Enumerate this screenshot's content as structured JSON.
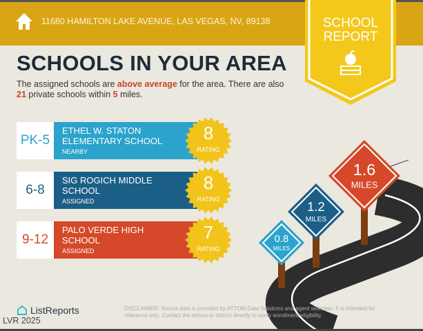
{
  "header": {
    "address": "11680 HAMILTON LAKE AVENUE, LAS VEGAS, NV, 89138",
    "badge_line1": "SCHOOL",
    "badge_line2": "REPORT",
    "icons": [
      "home-icon",
      "apple-books-icon"
    ]
  },
  "title": "SCHOOLS IN YOUR AREA",
  "intro": {
    "p1": "The assigned schools are ",
    "above": "above average",
    "p2": " for the area. There are also ",
    "count": "21",
    "p3": " private schools within ",
    "miles": "5",
    "p4": " miles."
  },
  "schools": [
    {
      "grades": "PK-5",
      "name": "ETHEL W. STATON ELEMENTARY SCHOOL",
      "status": "NEARBY",
      "rating": "8",
      "rating_label": "RATING",
      "color": "#2ba3cc"
    },
    {
      "grades": "6-8",
      "name": "SIG ROGICH MIDDLE SCHOOL",
      "status": "ASSIGNED",
      "rating": "8",
      "rating_label": "RATING",
      "color": "#1b5f86"
    },
    {
      "grades": "9-12",
      "name": "PALO VERDE HIGH SCHOOL",
      "status": "ASSIGNED",
      "rating": "7",
      "rating_label": "RATING",
      "color": "#d5492a"
    }
  ],
  "signs": [
    {
      "distance": "0.8",
      "unit": "MILES",
      "color": "#2ba3cc"
    },
    {
      "distance": "1.2",
      "unit": "MILES",
      "color": "#1b5f86"
    },
    {
      "distance": "1.6",
      "unit": "MILES",
      "color": "#d5492a"
    }
  ],
  "footer": {
    "logo": "ListReports",
    "watermark": "LVR 2025",
    "disclaimer": "DISCLAIMER: School data is provided by ATTOM Data Solutions and agent selection. It is intended for reference only. Contact the school or district directly to verify enrollment eligibility."
  }
}
